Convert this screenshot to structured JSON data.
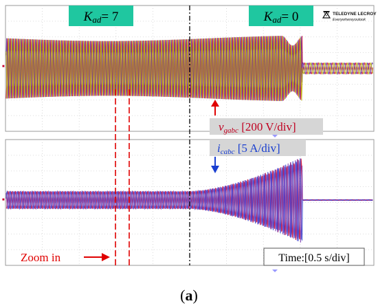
{
  "chart_data": {
    "type": "line",
    "panels": [
      {
        "name": "v_gabc",
        "series_colors": [
          "#c8002e",
          "#5a2a9a",
          "#b8b000"
        ],
        "scale_label": {
          "main": "v",
          "sub": "gabc",
          "tail": " [200 V/div]"
        },
        "arrow": "up"
      },
      {
        "name": "i_cabc",
        "series_colors": [
          "#c8002e",
          "#2a3acc",
          "#7a3ab0"
        ],
        "scale_label": {
          "main": "i",
          "sub": "cabc",
          "tail": " [5 A/div]"
        },
        "arrow": "down"
      }
    ],
    "regions": [
      {
        "label_main": "K",
        "label_sub": "ad",
        "label_tail": "= 7"
      },
      {
        "label_main": "K",
        "label_sub": "ad",
        "label_tail": "= 0"
      }
    ],
    "zoom_label": "Zoom in",
    "time_scale": "Time:[0.5 s/div]",
    "channel_tag": "■",
    "grid": true
  },
  "logo": {
    "line1": "TELEDYNE LECROY",
    "line2": "Everywhereyoulook"
  },
  "caption": {
    "open": "(",
    "letter": "a",
    "close": ")"
  },
  "colors": {
    "label_bg": "#1fc7a0",
    "divider": "#000000",
    "zoom": "#e00000",
    "v_arrow": "#e00000",
    "i_arrow": "#1a3fd0",
    "i_text": "#1a3fd0",
    "v_text": "#c00020"
  }
}
